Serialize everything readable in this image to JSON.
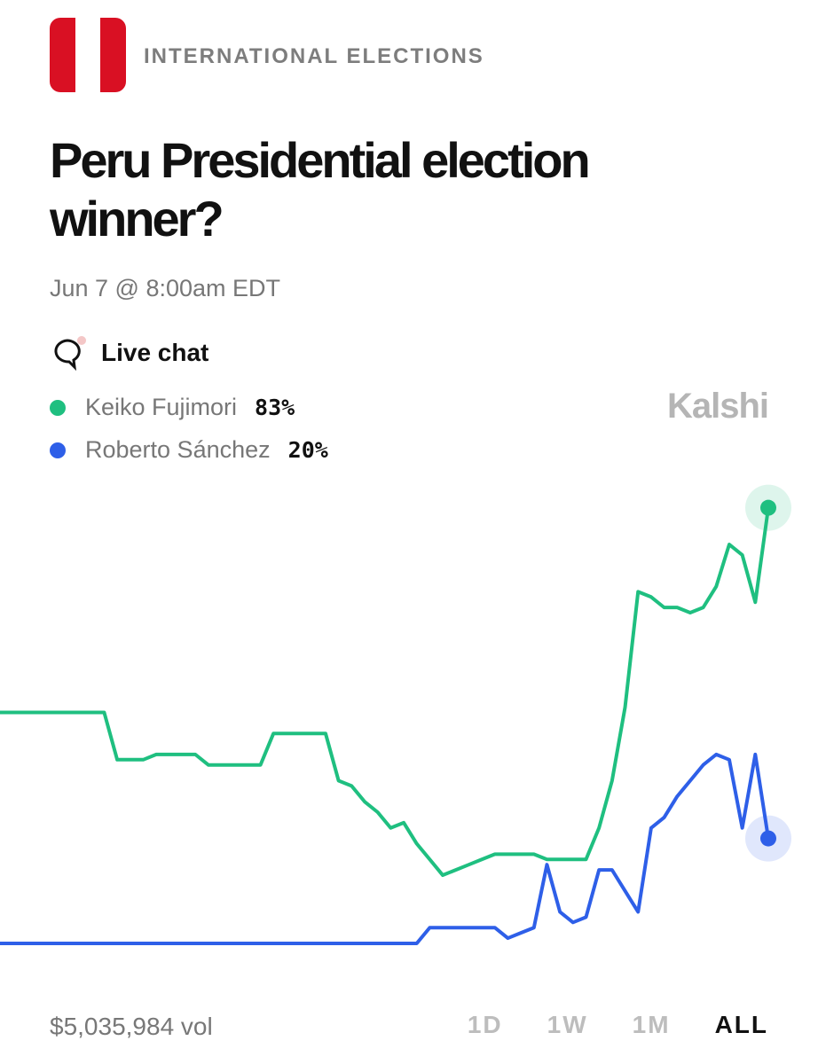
{
  "header": {
    "category": "INTERNATIONAL ELECTIONS",
    "title": "Peru Presidential election winner?",
    "date": "Jun 7 @ 8:00am EDT",
    "chat": "Live chat",
    "brand": "Kalshi"
  },
  "chart_data": {
    "type": "line",
    "ylim": [
      0,
      100
    ],
    "series": [
      {
        "name": "Keiko Fujimori",
        "color": "#1fbf80",
        "current": "83%",
        "values": [
          44,
          44,
          44,
          44,
          44,
          44,
          44,
          44,
          44,
          35,
          35,
          35,
          36,
          36,
          36,
          36,
          34,
          34,
          34,
          34,
          34,
          40,
          40,
          40,
          40,
          40,
          31,
          30,
          27,
          25,
          22,
          23,
          19,
          16,
          13,
          14,
          15,
          16,
          17,
          17,
          17,
          17,
          16,
          16,
          16,
          16,
          22,
          31,
          45,
          67,
          66,
          64,
          64,
          63,
          64,
          68,
          76,
          74,
          65,
          83
        ]
      },
      {
        "name": "Roberto Sánchez",
        "color": "#2e5fe8",
        "current": "20%",
        "values": [
          0,
          0,
          0,
          0,
          0,
          0,
          0,
          0,
          0,
          0,
          0,
          0,
          0,
          0,
          0,
          0,
          0,
          0,
          0,
          0,
          0,
          0,
          0,
          0,
          0,
          0,
          0,
          0,
          0,
          0,
          0,
          0,
          0,
          3,
          3,
          3,
          3,
          3,
          3,
          1,
          2,
          3,
          15,
          6,
          4,
          5,
          14,
          14,
          10,
          6,
          22,
          24,
          28,
          31,
          34,
          36,
          35,
          22,
          36,
          20
        ]
      }
    ]
  },
  "footer": {
    "volume": "$5,035,984 vol",
    "ranges": [
      "1D",
      "1W",
      "1M",
      "ALL"
    ],
    "active": "ALL"
  }
}
